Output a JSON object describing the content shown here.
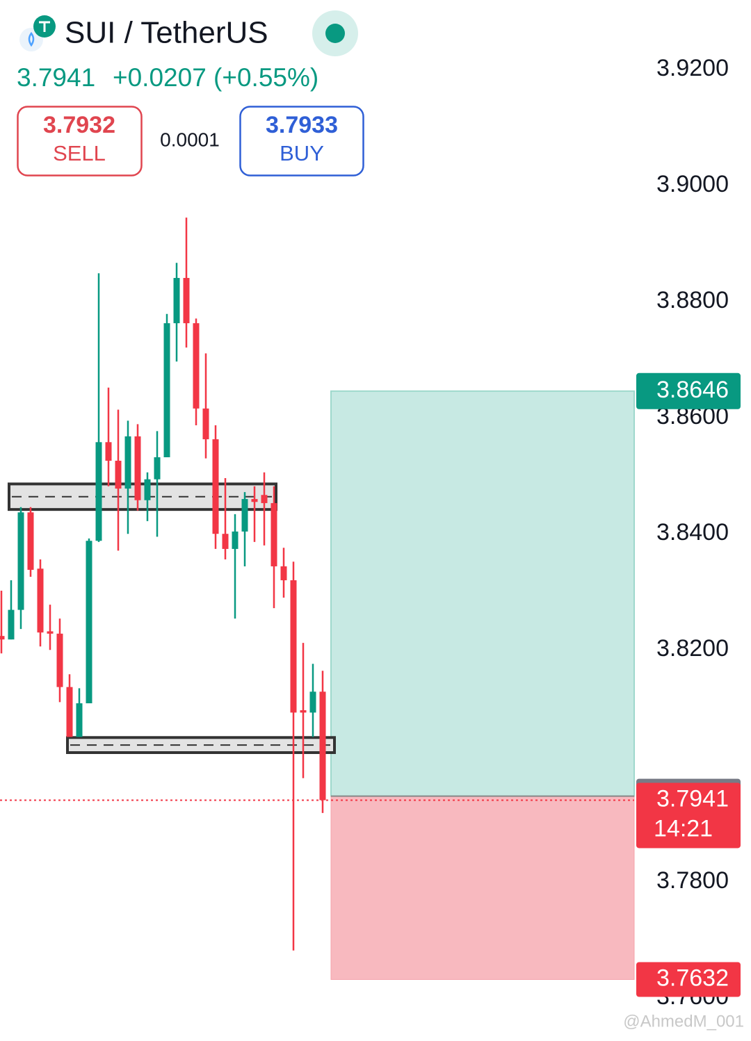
{
  "header": {
    "symbol": "SUI / TetherUS",
    "price": "3.7941",
    "change": "+0.0207 (+0.55%)",
    "sell_price": "3.7932",
    "sell_label": "SELL",
    "spread": "0.0001",
    "buy_price": "3.7933",
    "buy_label": "BUY"
  },
  "chart_data": {
    "type": "candlestick",
    "up_color": "#089981",
    "down_color": "#f23645",
    "ylim": [
      3.7526,
      3.932
    ],
    "yticks": [
      {
        "value": 3.92,
        "label": "3.9200"
      },
      {
        "value": 3.9,
        "label": "3.9000"
      },
      {
        "value": 3.88,
        "label": "3.8800"
      },
      {
        "value": 3.86,
        "label": "3.8600"
      },
      {
        "value": 3.84,
        "label": "3.8400"
      },
      {
        "value": 3.82,
        "label": "3.8200"
      },
      {
        "value": 3.78,
        "label": "3.7800"
      },
      {
        "value": 3.76,
        "label": "3.7600"
      }
    ],
    "open": [
      3.8224,
      3.8218,
      3.8269,
      3.8437,
      3.834,
      3.8232,
      3.8228,
      3.8136,
      3.805,
      3.8108,
      3.8388,
      3.8558,
      3.8526,
      3.8478,
      3.8568,
      3.8458,
      3.8494,
      3.8532,
      3.8763,
      3.8841,
      3.8763,
      3.8616,
      3.8563,
      3.84,
      3.8374,
      3.8404,
      3.846,
      3.8467,
      3.8453,
      3.8344,
      3.832,
      3.8096,
      3.8092,
      3.8128
    ],
    "high": [
      3.8302,
      3.832,
      3.8446,
      3.8446,
      3.8356,
      3.8278,
      3.8254,
      3.8158,
      3.8134,
      3.8392,
      3.8849,
      3.8652,
      3.8614,
      3.8595,
      3.8589,
      3.8506,
      3.8577,
      3.8779,
      3.8867,
      3.8945,
      3.8771,
      3.8711,
      3.8587,
      3.8496,
      3.8434,
      3.8472,
      3.8482,
      3.8506,
      3.8482,
      3.8376,
      3.8352,
      3.8212,
      3.8176,
      3.8164
    ],
    "low": [
      3.8194,
      3.8218,
      3.8236,
      3.8326,
      3.8206,
      3.82,
      3.811,
      3.805,
      3.805,
      3.8108,
      3.8386,
      3.8482,
      3.8371,
      3.84,
      3.844,
      3.8422,
      3.8395,
      3.8532,
      3.8697,
      3.8721,
      3.8587,
      3.853,
      3.8374,
      3.8356,
      3.8254,
      3.8344,
      3.8386,
      3.838,
      3.8272,
      3.829,
      3.7682,
      3.7979,
      3.805,
      3.7919
    ],
    "close": [
      3.8218,
      3.8269,
      3.8437,
      3.8338,
      3.823,
      3.8228,
      3.8136,
      3.805,
      3.8108,
      3.8388,
      3.8558,
      3.8526,
      3.8478,
      3.8568,
      3.8458,
      3.8494,
      3.8532,
      3.8763,
      3.8841,
      3.8763,
      3.8616,
      3.8563,
      3.84,
      3.8374,
      3.8404,
      3.846,
      3.8455,
      3.8453,
      3.8344,
      3.832,
      3.8092,
      3.8092,
      3.8128,
      3.7941
    ],
    "zones": [
      {
        "top": 3.8486,
        "bottom": 3.8442,
        "from": 1,
        "to": 28
      },
      {
        "top": 3.8049,
        "bottom": 3.8023,
        "from": 7,
        "to": 34
      }
    ],
    "position": {
      "target": 3.8646,
      "entry": 3.7948,
      "stop": 3.7632
    },
    "last_price": {
      "value": 3.7941,
      "countdown": "14:21"
    }
  },
  "watermark": "@AhmedM_001"
}
